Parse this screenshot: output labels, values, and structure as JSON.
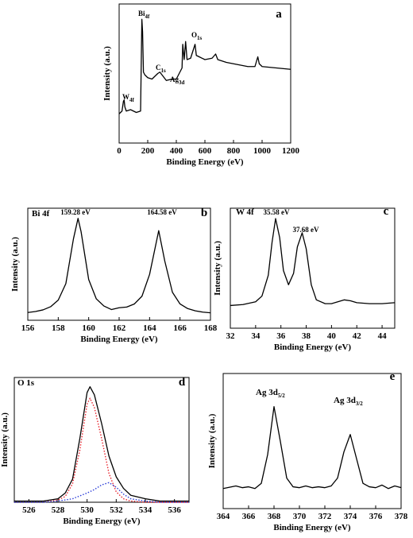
{
  "chart_data": [
    {
      "type": "line",
      "panel_label": "a",
      "x_label": "Binding Energy (eV)",
      "y_label": "Intensity (a.u.)",
      "xlim": [
        0,
        1200
      ],
      "xticks": [
        0,
        200,
        400,
        600,
        800,
        1000,
        1200
      ],
      "ylim": [
        0,
        100
      ],
      "annotations": [
        {
          "text": "Bi",
          "sub": "4f"
        },
        {
          "text": "W",
          "sub": "4f"
        },
        {
          "text": "C",
          "sub": "1s"
        },
        {
          "text": "Ag",
          "sub": "3d"
        },
        {
          "text": "O",
          "sub": "1s"
        }
      ],
      "series": [
        {
          "color": "#000000",
          "style": "solid",
          "x": [
            0,
            20,
            30,
            35,
            40,
            50,
            80,
            120,
            150,
            159,
            164,
            170,
            180,
            200,
            230,
            260,
            270,
            285,
            300,
            330,
            370,
            400,
            440,
            445,
            455,
            465,
            475,
            500,
            531,
            540,
            560,
            600,
            650,
            675,
            690,
            750,
            800,
            850,
            900,
            950,
            970,
            980,
            1000,
            1100,
            1200
          ],
          "values": [
            21,
            23,
            30,
            31,
            26,
            23,
            24,
            22,
            23,
            89,
            80,
            51,
            49,
            47,
            46,
            49,
            50,
            51,
            49,
            45,
            46,
            46,
            54,
            71,
            60,
            73,
            60,
            61,
            71,
            63,
            62,
            60,
            61,
            64,
            60,
            58,
            57,
            56,
            55,
            55,
            62,
            57,
            55,
            54,
            53
          ]
        }
      ]
    },
    {
      "type": "line",
      "panel_label": "b",
      "title": "Bi 4f",
      "x_label": "Binding Energy (eV)",
      "y_label": "Intensity (a.u.)",
      "xlim": [
        156,
        168
      ],
      "xticks": [
        156,
        158,
        160,
        162,
        164,
        166,
        168
      ],
      "ylim": [
        0,
        110
      ],
      "annotations": [
        {
          "text": "159.28 eV"
        },
        {
          "text": "164.58 eV"
        }
      ],
      "series": [
        {
          "color": "#000000",
          "style": "solid",
          "x": [
            156,
            156.5,
            157,
            157.5,
            158,
            158.5,
            159,
            159.3,
            159.5,
            160,
            160.5,
            161,
            161.5,
            162,
            162.5,
            163,
            163.5,
            164,
            164.6,
            165,
            165.5,
            166,
            166.5,
            167,
            167.5,
            168
          ],
          "values": [
            7.6,
            8.6,
            10.2,
            13.3,
            19.8,
            36,
            80,
            100,
            87,
            40,
            21,
            14,
            10.5,
            12.3,
            13,
            16,
            23.6,
            45,
            88,
            58,
            27.5,
            16,
            11.5,
            9.3,
            8,
            7.3
          ]
        }
      ]
    },
    {
      "type": "line",
      "panel_label": "c",
      "title": "W 4f",
      "x_label": "Binding Energy (eV)",
      "y_label": "Intensity (a.u.)",
      "xlim": [
        32,
        45
      ],
      "xticks": [
        32,
        34,
        36,
        38,
        40,
        42,
        44
      ],
      "ylim": [
        -16,
        111
      ],
      "annotations": [
        {
          "text": "35.58 eV"
        },
        {
          "text": "37.68 eV"
        }
      ],
      "series": [
        {
          "color": "#000000",
          "style": "solid",
          "x": [
            32,
            33,
            34,
            34.5,
            35,
            35.3,
            35.58,
            35.9,
            36.2,
            36.6,
            37,
            37.3,
            37.68,
            38,
            38.4,
            38.8,
            39.5,
            40,
            40.5,
            41,
            41.5,
            42,
            43,
            44,
            45
          ],
          "values": [
            8,
            9,
            12,
            18,
            40,
            75,
            100,
            80,
            45,
            30,
            42,
            70,
            85,
            68,
            30,
            14,
            10,
            10,
            12,
            14,
            13,
            11,
            10,
            10,
            11
          ]
        }
      ]
    },
    {
      "type": "line",
      "panel_label": "d",
      "title": "O 1s",
      "x_label": "Binding Energy (eV)",
      "y_label": "Intensity (a.u.)",
      "xlim": [
        525,
        537
      ],
      "xticks": [
        526,
        528,
        530,
        532,
        534,
        536
      ],
      "ylim": [
        0,
        108
      ],
      "series": [
        {
          "color": "#000000",
          "style": "solid",
          "x": [
            525,
            527,
            528,
            528.5,
            529,
            529.5,
            530,
            530.2,
            530.5,
            531,
            531.5,
            532,
            532.5,
            533,
            534,
            535,
            537
          ],
          "values": [
            1,
            1,
            3,
            8,
            20,
            55,
            95,
            100,
            93,
            68,
            40,
            22,
            12,
            6,
            3,
            1,
            1
          ]
        },
        {
          "color": "#e8202a",
          "style": "dotted",
          "x": [
            525,
            527,
            528,
            528.5,
            529,
            529.5,
            530,
            530.2,
            530.5,
            531,
            531.5,
            532,
            532.5,
            533,
            534,
            537
          ],
          "values": [
            0,
            0,
            2,
            5,
            16,
            45,
            85,
            90,
            82,
            55,
            25,
            9,
            3,
            1,
            0,
            0
          ]
        },
        {
          "color": "#2a3cd8",
          "style": "dotted",
          "x": [
            525,
            527,
            528,
            529,
            530,
            530.5,
            531,
            531.5,
            532,
            532.5,
            533,
            534,
            535,
            537
          ],
          "values": [
            0,
            0,
            1,
            3,
            8,
            11,
            15,
            17,
            13,
            7,
            3,
            1,
            0,
            0
          ]
        }
      ]
    },
    {
      "type": "line",
      "panel_label": "e",
      "x_label": "Binding Energy (eV)",
      "y_label": "Intensity (a.u.)",
      "xlim": [
        364,
        378
      ],
      "xticks": [
        364,
        366,
        368,
        370,
        372,
        374,
        376,
        378
      ],
      "ylim": [
        -17,
        138
      ],
      "annotations": [
        {
          "text": "Ag 3d",
          "sub": "5/2"
        },
        {
          "text": "Ag 3d",
          "sub": "3/2"
        }
      ],
      "series": [
        {
          "color": "#000000",
          "style": "solid",
          "x": [
            364,
            365,
            365.5,
            366,
            366.5,
            367,
            367.5,
            368,
            368.5,
            369,
            369.5,
            370,
            370.5,
            371,
            371.5,
            372,
            372.5,
            373,
            373.5,
            374,
            374.5,
            375,
            375.5,
            376,
            376.5,
            377,
            377.5,
            378
          ],
          "values": [
            6,
            9,
            7,
            8,
            6,
            12,
            45,
            100,
            60,
            18,
            8,
            7,
            9,
            7,
            8,
            7,
            9,
            18,
            48,
            68,
            40,
            12,
            8,
            7,
            10,
            6,
            9,
            7
          ]
        }
      ]
    }
  ]
}
